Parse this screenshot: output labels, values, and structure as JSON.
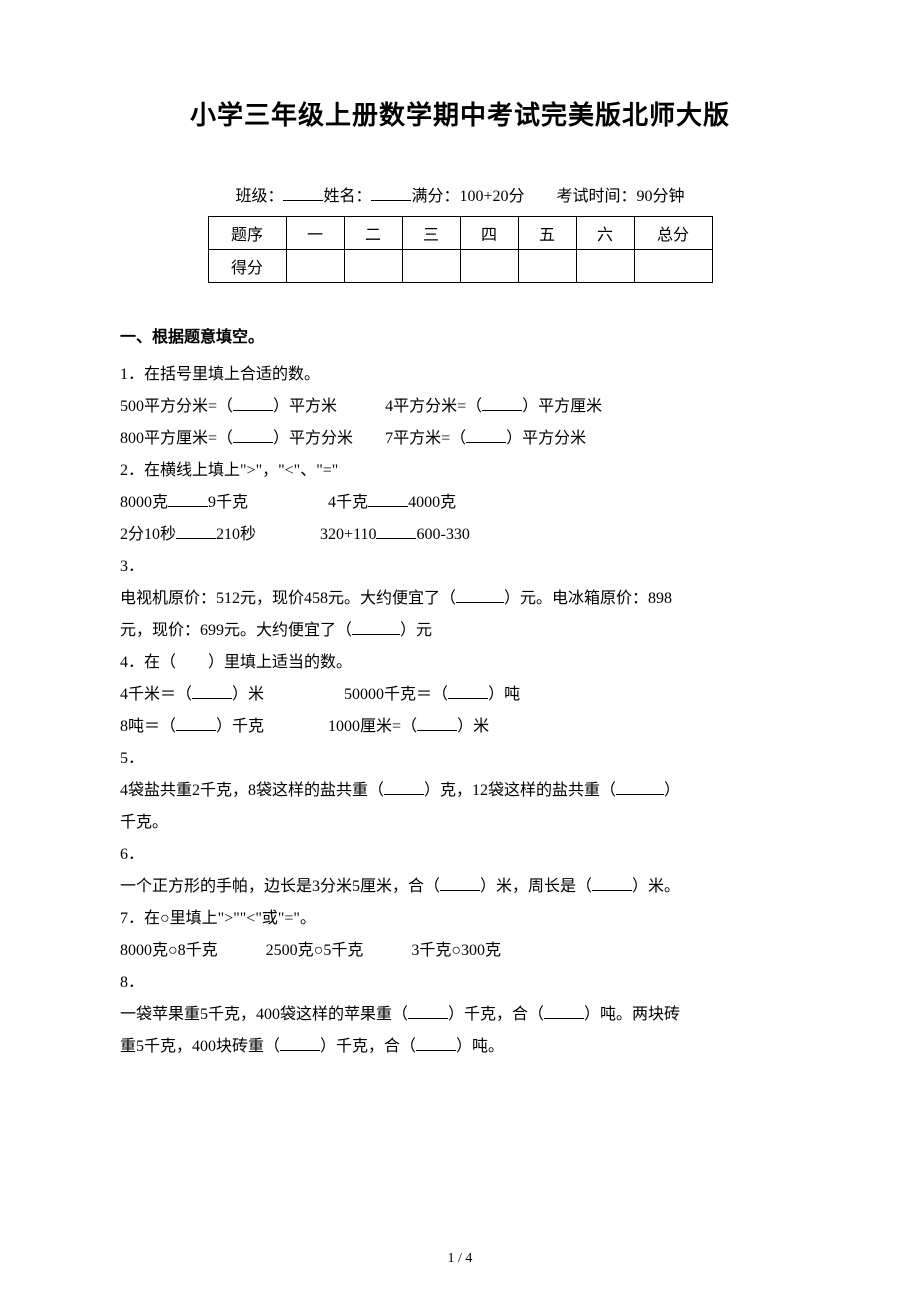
{
  "title": "小学三年级上册数学期中考试完美版北师大版",
  "info": {
    "class_label": "班级：",
    "name_label": "姓名：",
    "full_score_label": "满分：100+20分",
    "time_label": "考试时间：90分钟"
  },
  "table": {
    "row1_label": "题序",
    "cols": [
      "一",
      "二",
      "三",
      "四",
      "五",
      "六"
    ],
    "total_label": "总分",
    "row2_label": "得分"
  },
  "section1_title": "一、根据题意填空。",
  "q1": {
    "num": "1．",
    "text": "在括号里填上合适的数。",
    "l1a": "500平方分米=（",
    "l1b": "）平方米",
    "l1c": "4平方分米=（",
    "l1d": "）平方厘米",
    "l2a": "800平方厘米=（",
    "l2b": "）平方分米",
    "l2c": "7平方米=（",
    "l2d": "）平方分米"
  },
  "q2": {
    "num": "2．",
    "text": "在横线上填上\">\"，\"<\"、\"=\"",
    "l1a": "8000克",
    "l1b": "9千克",
    "l1c": "4千克",
    "l1d": "4000克",
    "l2a": "2分10秒",
    "l2b": "210秒",
    "l2c": "320+110",
    "l2d": "600-330"
  },
  "q3": {
    "num": "3．",
    "l1": "电视机原价：512元，现价458元。大约便宜了（",
    "l2": "）元。电冰箱原价：898",
    "l3": "元，现价：699元。大约便宜了（",
    "l4": "）元"
  },
  "q4": {
    "num": "4．",
    "text": "在（　　）里填上适当的数。",
    "l1a": "4千米＝（",
    "l1b": "）米",
    "l1c": "50000千克＝（",
    "l1d": "）吨",
    "l2a": "8吨＝（",
    "l2b": "）千克",
    "l2c": "1000厘米=（",
    "l2d": "）米"
  },
  "q5": {
    "num": "5．",
    "l1": "4袋盐共重2千克，8袋这样的盐共重（",
    "l2": "）克，12袋这样的盐共重（",
    "l3": "）",
    "l4": "千克。"
  },
  "q6": {
    "num": "6．",
    "l1": "一个正方形的手帕，边长是3分米5厘米，合（",
    "l2": "）米，周长是（",
    "l3": "）米。"
  },
  "q7": {
    "num": "7．",
    "text": "在○里填上\">\"\"<\"或\"=\"。",
    "l1": "8000克○8千克　　　2500克○5千克　　　3千克○300克"
  },
  "q8": {
    "num": "8．",
    "l1": "一袋苹果重5千克，400袋这样的苹果重（",
    "l2": "）千克，合（",
    "l3": "）吨。两块砖",
    "l4": "重5千克，400块砖重（",
    "l5": "）千克，合（",
    "l6": "）吨。"
  },
  "page_number": "1 / 4"
}
